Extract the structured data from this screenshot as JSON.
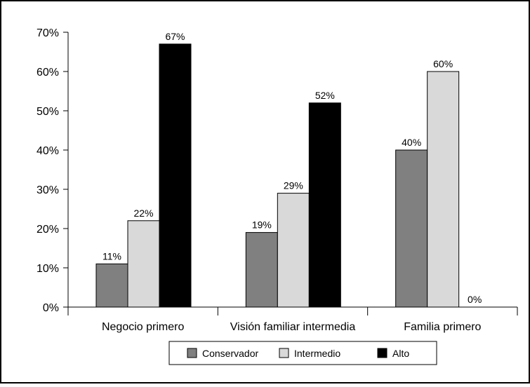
{
  "chart_data": {
    "type": "bar",
    "title": "",
    "xlabel": "",
    "ylabel": "",
    "categories": [
      "Negocio primero",
      "Visión familiar intermedia",
      "Familia primero"
    ],
    "series": [
      {
        "name": "Conservador",
        "values": [
          11,
          19,
          40
        ],
        "labels": [
          "11%",
          "19%",
          "40%"
        ],
        "color": "#808080"
      },
      {
        "name": "Intermedio",
        "values": [
          22,
          29,
          60
        ],
        "labels": [
          "22%",
          "29%",
          "60%"
        ],
        "color": "#d9d9d9"
      },
      {
        "name": "Alto",
        "values": [
          67,
          52,
          0
        ],
        "labels": [
          "67%",
          "52%",
          "0%"
        ],
        "color": "#000000"
      }
    ],
    "ylim": [
      0,
      70
    ],
    "yticks": [
      0,
      10,
      20,
      30,
      40,
      50,
      60,
      70
    ],
    "ytick_labels": [
      "0%",
      "10%",
      "20%",
      "30%",
      "40%",
      "50%",
      "60%",
      "70%"
    ],
    "grid": false,
    "legend_position": "bottom"
  }
}
